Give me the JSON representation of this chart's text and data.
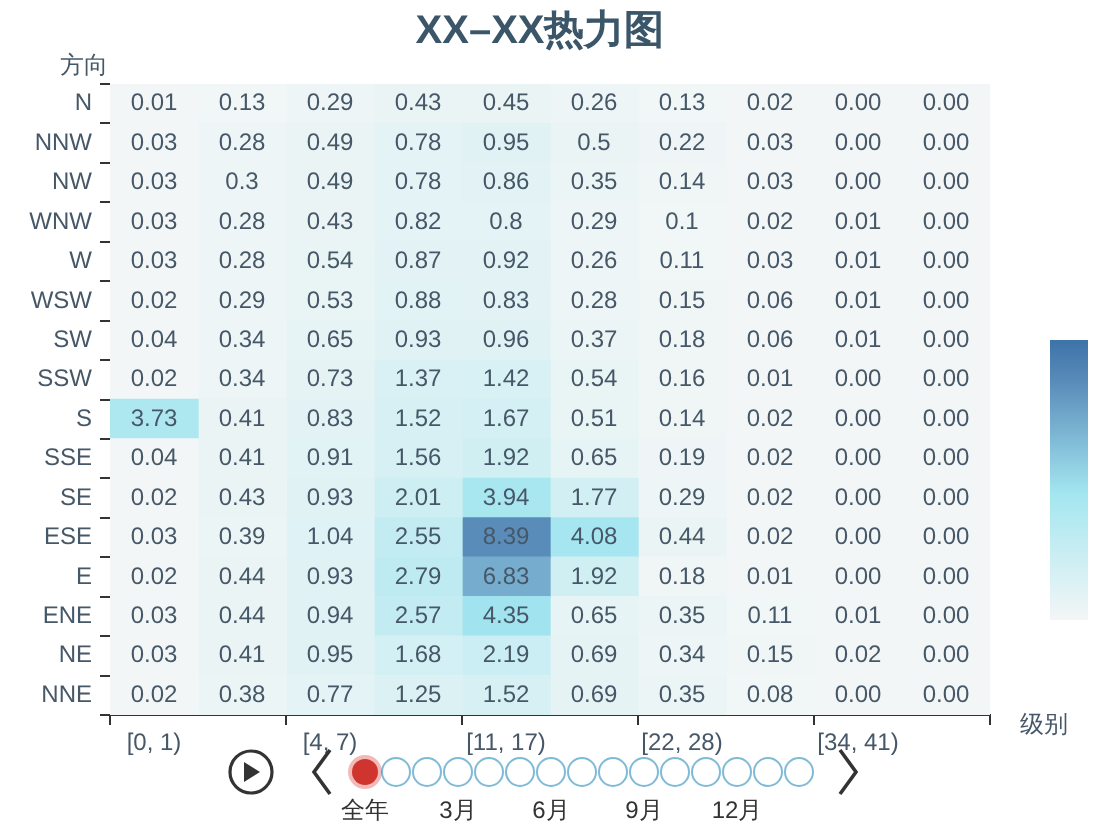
{
  "chart_data": {
    "type": "heatmap",
    "title": "XX–XX热力图",
    "xlabel": "级别",
    "ylabel": "方向",
    "categories": [
      "[0, 1)",
      null,
      "[4, 7)",
      null,
      "[11, 17)",
      null,
      "[22, 28)",
      null,
      "[34, 41)",
      null
    ],
    "y_categories": [
      "N",
      "NNW",
      "NW",
      "WNW",
      "W",
      "WSW",
      "SW",
      "SSW",
      "S",
      "SSE",
      "SE",
      "ESE",
      "E",
      "ENE",
      "NE",
      "NNE"
    ],
    "cells": [
      [
        0.01,
        0.13,
        0.29,
        0.43,
        0.45,
        0.26,
        0.13,
        0.02,
        0,
        0
      ],
      [
        0.03,
        0.28,
        0.49,
        0.78,
        0.95,
        0.5,
        0.22,
        0.03,
        0,
        0
      ],
      [
        0.03,
        0.3,
        0.49,
        0.78,
        0.86,
        0.35,
        0.14,
        0.03,
        0,
        0
      ],
      [
        0.03,
        0.28,
        0.43,
        0.82,
        0.8,
        0.29,
        0.1,
        0.02,
        0.01,
        0
      ],
      [
        0.03,
        0.28,
        0.54,
        0.87,
        0.92,
        0.26,
        0.11,
        0.03,
        0.01,
        0
      ],
      [
        0.02,
        0.29,
        0.53,
        0.88,
        0.83,
        0.28,
        0.15,
        0.06,
        0.01,
        0
      ],
      [
        0.04,
        0.34,
        0.65,
        0.93,
        0.96,
        0.37,
        0.18,
        0.06,
        0.01,
        0
      ],
      [
        0.02,
        0.34,
        0.73,
        1.37,
        1.42,
        0.54,
        0.16,
        0.01,
        0,
        0
      ],
      [
        3.73,
        0.41,
        0.83,
        1.52,
        1.67,
        0.51,
        0.14,
        0.02,
        0,
        0
      ],
      [
        0.04,
        0.41,
        0.91,
        1.56,
        1.92,
        0.65,
        0.19,
        0.02,
        0,
        0
      ],
      [
        0.02,
        0.43,
        0.93,
        2.01,
        3.94,
        1.77,
        0.29,
        0.02,
        0,
        0
      ],
      [
        0.03,
        0.39,
        1.04,
        2.55,
        8.39,
        4.08,
        0.44,
        0.02,
        0,
        0
      ],
      [
        0.02,
        0.44,
        0.93,
        2.79,
        6.83,
        1.92,
        0.18,
        0.01,
        0,
        0
      ],
      [
        0.03,
        0.44,
        0.94,
        2.57,
        4.35,
        0.65,
        0.35,
        0.11,
        0.01,
        0
      ],
      [
        0.03,
        0.41,
        0.95,
        1.68,
        2.19,
        0.69,
        0.34,
        0.15,
        0.02,
        0
      ],
      [
        0.02,
        0.38,
        0.77,
        1.25,
        1.52,
        0.69,
        0.35,
        0.08,
        0,
        0
      ]
    ],
    "cell_labels": [
      [
        "0.01",
        "0.13",
        "0.29",
        "0.43",
        "0.45",
        "0.26",
        "0.13",
        "0.02",
        "0.00",
        "0.00"
      ],
      [
        "0.03",
        "0.28",
        "0.49",
        "0.78",
        "0.95",
        "0.5",
        "0.22",
        "0.03",
        "0.00",
        "0.00"
      ],
      [
        "0.03",
        "0.3",
        "0.49",
        "0.78",
        "0.86",
        "0.35",
        "0.14",
        "0.03",
        "0.00",
        "0.00"
      ],
      [
        "0.03",
        "0.28",
        "0.43",
        "0.82",
        "0.8",
        "0.29",
        "0.1",
        "0.02",
        "0.01",
        "0.00"
      ],
      [
        "0.03",
        "0.28",
        "0.54",
        "0.87",
        "0.92",
        "0.26",
        "0.11",
        "0.03",
        "0.01",
        "0.00"
      ],
      [
        "0.02",
        "0.29",
        "0.53",
        "0.88",
        "0.83",
        "0.28",
        "0.15",
        "0.06",
        "0.01",
        "0.00"
      ],
      [
        "0.04",
        "0.34",
        "0.65",
        "0.93",
        "0.96",
        "0.37",
        "0.18",
        "0.06",
        "0.01",
        "0.00"
      ],
      [
        "0.02",
        "0.34",
        "0.73",
        "1.37",
        "1.42",
        "0.54",
        "0.16",
        "0.01",
        "0.00",
        "0.00"
      ],
      [
        "3.73",
        "0.41",
        "0.83",
        "1.52",
        "1.67",
        "0.51",
        "0.14",
        "0.02",
        "0.00",
        "0.00"
      ],
      [
        "0.04",
        "0.41",
        "0.91",
        "1.56",
        "1.92",
        "0.65",
        "0.19",
        "0.02",
        "0.00",
        "0.00"
      ],
      [
        "0.02",
        "0.43",
        "0.93",
        "2.01",
        "3.94",
        "1.77",
        "0.29",
        "0.02",
        "0.00",
        "0.00"
      ],
      [
        "0.03",
        "0.39",
        "1.04",
        "2.55",
        "8.39",
        "4.08",
        "0.44",
        "0.02",
        "0.00",
        "0.00"
      ],
      [
        "0.02",
        "0.44",
        "0.93",
        "2.79",
        "6.83",
        "1.92",
        "0.18",
        "0.01",
        "0.00",
        "0.00"
      ],
      [
        "0.03",
        "0.44",
        "0.94",
        "2.57",
        "4.35",
        "0.65",
        "0.35",
        "0.11",
        "0.01",
        "0.00"
      ],
      [
        "0.03",
        "0.41",
        "0.95",
        "1.68",
        "2.19",
        "0.69",
        "0.34",
        "0.15",
        "0.02",
        "0.00"
      ],
      [
        "0.02",
        "0.38",
        "0.77",
        "1.25",
        "1.52",
        "0.69",
        "0.35",
        "0.08",
        "0.00",
        "0.00"
      ]
    ],
    "annotations": [
      "全年",
      "3月",
      "6月",
      "9月",
      "12月"
    ]
  }
}
